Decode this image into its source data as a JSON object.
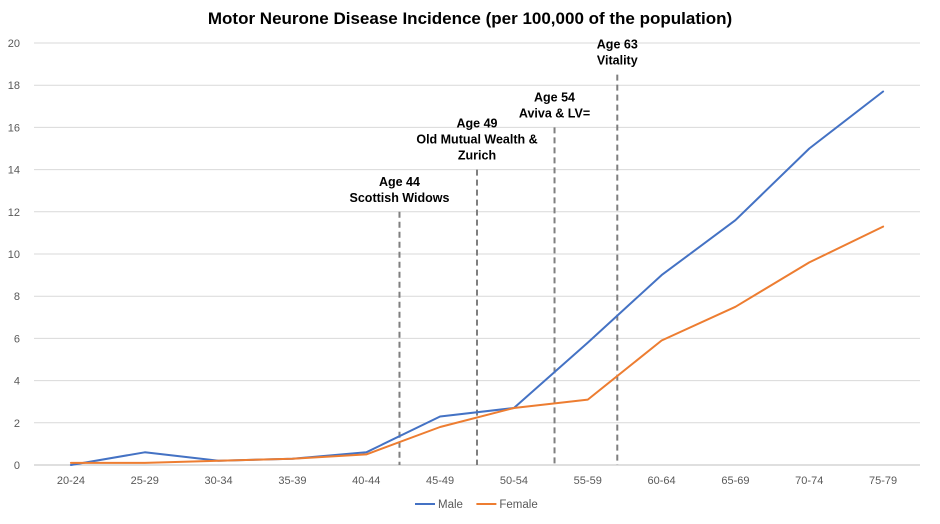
{
  "chart_data": {
    "type": "line",
    "title": "Motor Neurone Disease Incidence (per 100,000 of the population)",
    "xlabel": "",
    "ylabel": "",
    "categories": [
      "20-24",
      "25-29",
      "30-34",
      "35-39",
      "40-44",
      "45-49",
      "50-54",
      "55-59",
      "60-64",
      "65-69",
      "70-74",
      "75-79"
    ],
    "ylim": [
      0,
      20
    ],
    "yticks": [
      0,
      2,
      4,
      6,
      8,
      10,
      12,
      14,
      16,
      18,
      20
    ],
    "grid": true,
    "legend_position": "bottom",
    "series": [
      {
        "name": "Male",
        "color": "#4472C4",
        "values": [
          0.0,
          0.6,
          0.2,
          0.3,
          0.6,
          2.3,
          2.7,
          5.8,
          9.0,
          11.6,
          15.0,
          17.7
        ]
      },
      {
        "name": "Female",
        "color": "#ED7D31",
        "values": [
          0.1,
          0.1,
          0.2,
          0.3,
          0.5,
          1.8,
          2.7,
          3.1,
          5.9,
          7.5,
          9.6,
          11.3
        ]
      }
    ],
    "annotations": [
      {
        "age_x": 4.45,
        "y_top": 12,
        "lines": [
          "Age 44",
          "Scottish Widows"
        ]
      },
      {
        "age_x": 5.5,
        "y_top": 14,
        "lines": [
          "Age 49",
          "Old Mutual Wealth &",
          "Zurich"
        ]
      },
      {
        "age_x": 6.55,
        "y_top": 16,
        "lines": [
          "Age 54",
          "Aviva & LV="
        ]
      },
      {
        "age_x": 7.4,
        "y_top": 18.5,
        "lines": [
          "Age 63",
          "Vitality"
        ]
      }
    ]
  }
}
